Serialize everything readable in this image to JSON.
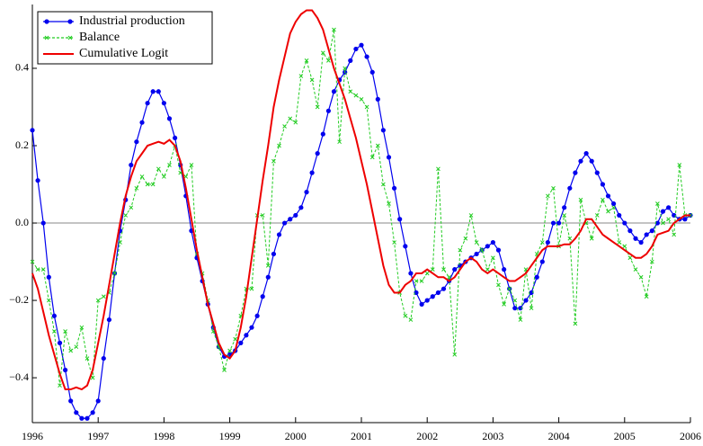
{
  "chart_data": {
    "type": "line",
    "xlim": [
      1996,
      2006
    ],
    "ylim": [
      -0.516,
      0.565
    ],
    "xticks": [
      1996,
      1997,
      1998,
      1999,
      2000,
      2001,
      2002,
      2003,
      2004,
      2005,
      2006
    ],
    "yticks": [
      {
        "value": -0.4,
        "label": "−0.4"
      },
      {
        "value": -0.2,
        "label": "−0.2"
      },
      {
        "value": 0,
        "label": "0.0"
      },
      {
        "value": 0.2,
        "label": "0.2"
      },
      {
        "value": 0.4,
        "label": "0.4"
      }
    ],
    "legend": "upper left",
    "x": [
      1996,
      1996.083,
      1996.167,
      1996.25,
      1996.333,
      1996.417,
      1996.5,
      1996.583,
      1996.667,
      1996.75,
      1996.833,
      1996.917,
      1997,
      1997.083,
      1997.167,
      1997.25,
      1997.333,
      1997.417,
      1997.5,
      1997.583,
      1997.667,
      1997.75,
      1997.833,
      1997.917,
      1998,
      1998.083,
      1998.167,
      1998.25,
      1998.333,
      1998.417,
      1998.5,
      1998.583,
      1998.667,
      1998.75,
      1998.833,
      1998.917,
      1999,
      1999.083,
      1999.167,
      1999.25,
      1999.333,
      1999.417,
      1999.5,
      1999.583,
      1999.667,
      1999.75,
      1999.833,
      1999.917,
      2000,
      2000.083,
      2000.167,
      2000.25,
      2000.333,
      2000.417,
      2000.5,
      2000.583,
      2000.667,
      2000.75,
      2000.833,
      2000.917,
      2001,
      2001.083,
      2001.167,
      2001.25,
      2001.333,
      2001.417,
      2001.5,
      2001.583,
      2001.667,
      2001.75,
      2001.833,
      2001.917,
      2002,
      2002.083,
      2002.167,
      2002.25,
      2002.333,
      2002.417,
      2002.5,
      2002.583,
      2002.667,
      2002.75,
      2002.833,
      2002.917,
      2003,
      2003.083,
      2003.167,
      2003.25,
      2003.333,
      2003.417,
      2003.5,
      2003.583,
      2003.667,
      2003.75,
      2003.833,
      2003.917,
      2004,
      2004.083,
      2004.167,
      2004.25,
      2004.333,
      2004.417,
      2004.5,
      2004.583,
      2004.667,
      2004.75,
      2004.833,
      2004.917,
      2005,
      2005.083,
      2005.167,
      2005.25,
      2005.333,
      2005.417,
      2005.5,
      2005.583,
      2005.667,
      2005.75,
      2005.833,
      2005.917,
      2006
    ],
    "series": [
      {
        "name": "Industrial production",
        "color": "#0000ee",
        "marker": "circle",
        "values": [
          0.24,
          0.11,
          0.0,
          -0.14,
          -0.24,
          -0.31,
          -0.38,
          -0.46,
          -0.49,
          -0.505,
          -0.505,
          -0.49,
          -0.46,
          -0.35,
          -0.25,
          -0.13,
          -0.02,
          0.06,
          0.15,
          0.21,
          0.26,
          0.31,
          0.34,
          0.34,
          0.31,
          0.27,
          0.22,
          0.15,
          0.07,
          -0.02,
          -0.09,
          -0.15,
          -0.21,
          -0.27,
          -0.32,
          -0.345,
          -0.34,
          -0.33,
          -0.31,
          -0.29,
          -0.27,
          -0.24,
          -0.19,
          -0.14,
          -0.08,
          -0.03,
          0.0,
          0.01,
          0.02,
          0.04,
          0.08,
          0.13,
          0.18,
          0.23,
          0.29,
          0.34,
          0.37,
          0.39,
          0.42,
          0.45,
          0.46,
          0.43,
          0.39,
          0.32,
          0.24,
          0.17,
          0.09,
          0.01,
          -0.06,
          -0.13,
          -0.18,
          -0.21,
          -0.2,
          -0.19,
          -0.18,
          -0.17,
          -0.15,
          -0.12,
          -0.11,
          -0.1,
          -0.09,
          -0.08,
          -0.07,
          -0.06,
          -0.05,
          -0.07,
          -0.12,
          -0.17,
          -0.22,
          -0.22,
          -0.2,
          -0.18,
          -0.14,
          -0.1,
          -0.05,
          0.0,
          0.0,
          0.04,
          0.09,
          0.13,
          0.16,
          0.18,
          0.16,
          0.13,
          0.1,
          0.07,
          0.05,
          0.02,
          0.0,
          -0.02,
          -0.04,
          -0.05,
          -0.03,
          -0.02,
          0.0,
          0.03,
          0.04,
          0.02,
          0.01,
          0.01,
          0.02
        ]
      },
      {
        "name": "Balance",
        "color": "#22cc22",
        "marker": "cross",
        "dashed": true,
        "values": [
          -0.1,
          -0.12,
          -0.12,
          -0.2,
          -0.28,
          -0.42,
          -0.28,
          -0.33,
          -0.32,
          -0.27,
          -0.35,
          -0.4,
          -0.2,
          -0.19,
          -0.18,
          -0.13,
          -0.05,
          0.02,
          0.04,
          0.09,
          0.12,
          0.1,
          0.1,
          0.14,
          0.12,
          0.15,
          0.2,
          0.13,
          0.12,
          0.15,
          -0.08,
          -0.13,
          -0.2,
          -0.28,
          -0.32,
          -0.38,
          -0.33,
          -0.3,
          -0.24,
          -0.17,
          -0.17,
          0.02,
          0.02,
          -0.11,
          0.16,
          0.2,
          0.25,
          0.27,
          0.26,
          0.38,
          0.42,
          0.37,
          0.3,
          0.44,
          0.42,
          0.5,
          0.21,
          0.4,
          0.34,
          0.33,
          0.32,
          0.3,
          0.17,
          0.2,
          0.1,
          0.05,
          -0.05,
          -0.18,
          -0.24,
          -0.25,
          -0.15,
          -0.15,
          -0.13,
          -0.12,
          0.14,
          -0.12,
          -0.14,
          -0.34,
          -0.07,
          -0.04,
          0.02,
          -0.05,
          -0.07,
          -0.12,
          -0.09,
          -0.16,
          -0.21,
          -0.17,
          -0.2,
          -0.25,
          -0.12,
          -0.22,
          -0.08,
          -0.05,
          0.07,
          0.09,
          -0.06,
          0.02,
          -0.04,
          -0.26,
          0.06,
          0.0,
          -0.04,
          0.02,
          0.06,
          0.03,
          0.04,
          -0.05,
          -0.06,
          -0.09,
          -0.12,
          -0.14,
          -0.19,
          -0.1,
          0.05,
          0.0,
          0.01,
          -0.03,
          0.15,
          0.02,
          0.02
        ]
      },
      {
        "name": "Cumulative Logit",
        "color": "#ee0000",
        "marker": "none",
        "values": [
          -0.13,
          -0.17,
          -0.23,
          -0.29,
          -0.34,
          -0.39,
          -0.43,
          -0.43,
          -0.425,
          -0.43,
          -0.42,
          -0.38,
          -0.31,
          -0.24,
          -0.16,
          -0.08,
          0.0,
          0.07,
          0.12,
          0.16,
          0.18,
          0.2,
          0.205,
          0.21,
          0.205,
          0.215,
          0.2,
          0.16,
          0.09,
          0.01,
          -0.07,
          -0.14,
          -0.21,
          -0.26,
          -0.31,
          -0.34,
          -0.35,
          -0.33,
          -0.27,
          -0.19,
          -0.09,
          0.01,
          0.11,
          0.2,
          0.3,
          0.37,
          0.43,
          0.49,
          0.52,
          0.54,
          0.55,
          0.55,
          0.53,
          0.5,
          0.45,
          0.4,
          0.36,
          0.32,
          0.27,
          0.22,
          0.16,
          0.1,
          0.03,
          -0.04,
          -0.11,
          -0.16,
          -0.18,
          -0.18,
          -0.16,
          -0.15,
          -0.13,
          -0.13,
          -0.12,
          -0.13,
          -0.14,
          -0.14,
          -0.15,
          -0.14,
          -0.12,
          -0.1,
          -0.09,
          -0.1,
          -0.12,
          -0.13,
          -0.12,
          -0.13,
          -0.14,
          -0.15,
          -0.15,
          -0.14,
          -0.13,
          -0.11,
          -0.09,
          -0.07,
          -0.06,
          -0.06,
          -0.06,
          -0.055,
          -0.055,
          -0.04,
          -0.02,
          0.01,
          0.01,
          -0.01,
          -0.03,
          -0.04,
          -0.05,
          -0.06,
          -0.07,
          -0.08,
          -0.09,
          -0.09,
          -0.08,
          -0.06,
          -0.03,
          -0.025,
          -0.02,
          0.0,
          0.01,
          0.02,
          0.02
        ]
      }
    ]
  }
}
